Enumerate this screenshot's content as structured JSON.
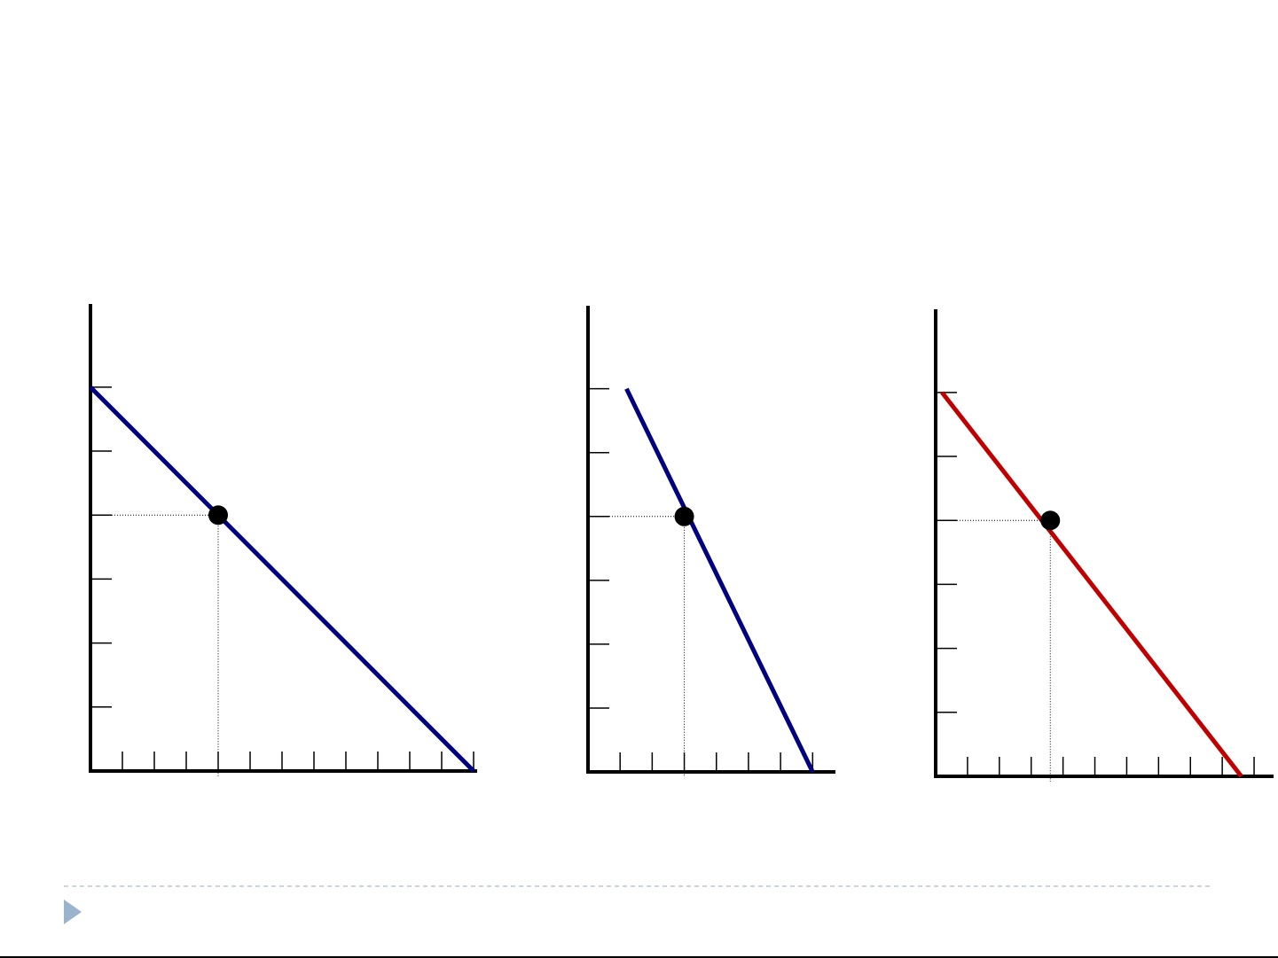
{
  "chart_data": [
    {
      "type": "line",
      "x": [
        0,
        12
      ],
      "values": [
        6,
        0
      ],
      "color": "#000080",
      "point": {
        "x": 4,
        "y": 4
      },
      "xlim": [
        0,
        12
      ],
      "ylim": [
        0,
        7.3
      ],
      "xticks": [
        1,
        2,
        3,
        4,
        5,
        6,
        7,
        8,
        9,
        10,
        11,
        12
      ],
      "yticks": [
        1,
        2,
        3,
        4,
        5,
        6
      ]
    },
    {
      "type": "line",
      "x": [
        1.2,
        7
      ],
      "values": [
        6,
        0
      ],
      "color": "#000080",
      "point": {
        "x": 3,
        "y": 4
      },
      "xlim": [
        0,
        7.6
      ],
      "ylim": [
        0,
        7.3
      ],
      "xticks": [
        1,
        2,
        3,
        4,
        5,
        6,
        7
      ],
      "yticks": [
        1,
        2,
        3,
        4,
        5,
        6
      ]
    },
    {
      "type": "line",
      "x": [
        0.2,
        9.6
      ],
      "values": [
        6,
        0
      ],
      "color": "#c00000",
      "point": {
        "x": 3.6,
        "y": 4
      },
      "xlim": [
        0,
        10.5
      ],
      "ylim": [
        0,
        7.3
      ],
      "xticks": [
        1,
        2,
        3,
        4,
        5,
        6,
        7,
        8,
        9,
        10
      ],
      "yticks": [
        1,
        2,
        3,
        4,
        5,
        6
      ]
    }
  ]
}
